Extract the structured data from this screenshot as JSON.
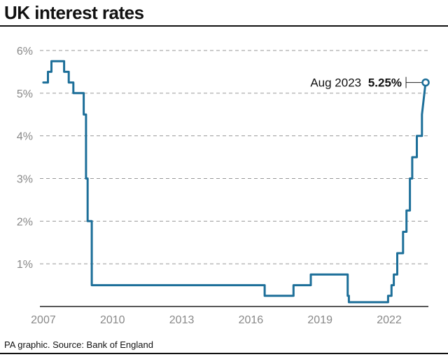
{
  "title": "UK interest rates",
  "source": "PA graphic. Source: Bank of England",
  "colors": {
    "line": "#1d6f99",
    "grid": "#999999",
    "axis": "#222222",
    "tick_text": "#888888"
  },
  "chart_data": {
    "type": "line",
    "title": "UK interest rates",
    "xlabel": "",
    "ylabel": "",
    "xlim": [
      2006.85,
      2023.7
    ],
    "ylim": [
      0,
      6
    ],
    "x_ticks": [
      2007,
      2010,
      2013,
      2016,
      2019,
      2022
    ],
    "x_tick_labels": [
      "2007",
      "2010",
      "2013",
      "2016",
      "2019",
      "2022"
    ],
    "y_ticks": [
      1,
      2,
      3,
      4,
      5,
      6
    ],
    "y_tick_labels": [
      "1%",
      "2%",
      "3%",
      "4%",
      "5%",
      "6%"
    ],
    "grid": "horizontal-dashed",
    "series": [
      {
        "x": [
          2007.0,
          2007.2,
          2007.2,
          2007.35,
          2007.35,
          2007.55,
          2007.55,
          2007.9,
          2007.9,
          2008.1,
          2008.1,
          2008.3,
          2008.3,
          2008.75,
          2008.75,
          2008.85,
          2008.85,
          2008.92,
          2008.92,
          2009.1,
          2009.1,
          2016.6,
          2016.6,
          2017.85,
          2017.85,
          2018.6,
          2018.6,
          2020.2,
          2020.2,
          2020.25,
          2020.25,
          2021.95,
          2021.95,
          2022.1,
          2022.1,
          2022.2,
          2022.2,
          2022.35,
          2022.35,
          2022.6,
          2022.6,
          2022.75,
          2022.75,
          2022.9,
          2022.9,
          2023.0,
          2023.0,
          2023.2,
          2023.2,
          2023.42,
          2023.42,
          2023.58
        ],
        "y": [
          5.25,
          5.25,
          5.5,
          5.5,
          5.75,
          5.75,
          5.75,
          5.75,
          5.5,
          5.5,
          5.25,
          5.25,
          5.0,
          5.0,
          4.5,
          4.5,
          3.0,
          3.0,
          2.0,
          2.0,
          0.5,
          0.5,
          0.25,
          0.25,
          0.5,
          0.5,
          0.75,
          0.75,
          0.25,
          0.25,
          0.1,
          0.1,
          0.25,
          0.25,
          0.5,
          0.5,
          0.75,
          0.75,
          1.25,
          1.25,
          1.75,
          1.75,
          2.25,
          2.25,
          3.0,
          3.0,
          3.5,
          3.5,
          4.0,
          4.0,
          4.5,
          5.25
        ]
      }
    ],
    "annotation": {
      "label": "Aug 2023",
      "value": "5.25%",
      "x": 2023.58,
      "y": 5.25
    }
  }
}
